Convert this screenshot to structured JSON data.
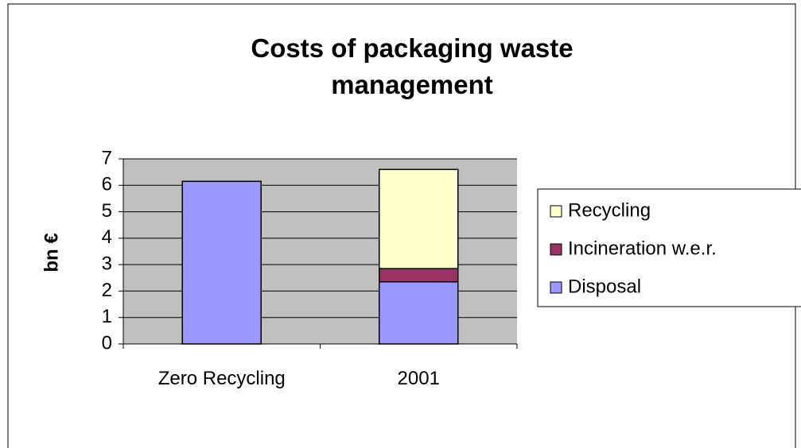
{
  "chart_data": {
    "type": "stacked-bar",
    "title": "Costs of packaging waste management",
    "y_label": "bn €",
    "categories": [
      "Zero Recycling",
      "2001"
    ],
    "series": [
      {
        "name": "Disposal",
        "color": "#9999ff",
        "values": [
          6.15,
          2.35
        ]
      },
      {
        "name": "Incineration w.e.r.",
        "color": "#993366",
        "values": [
          null,
          0.5
        ]
      },
      {
        "name": "Recycling",
        "color": "#ffffcc",
        "values": [
          null,
          3.75
        ]
      }
    ],
    "ylim": [
      0,
      7
    ],
    "yticks": [
      0,
      1,
      2,
      3,
      4,
      5,
      6,
      7
    ],
    "grid": true,
    "legend": "right"
  }
}
